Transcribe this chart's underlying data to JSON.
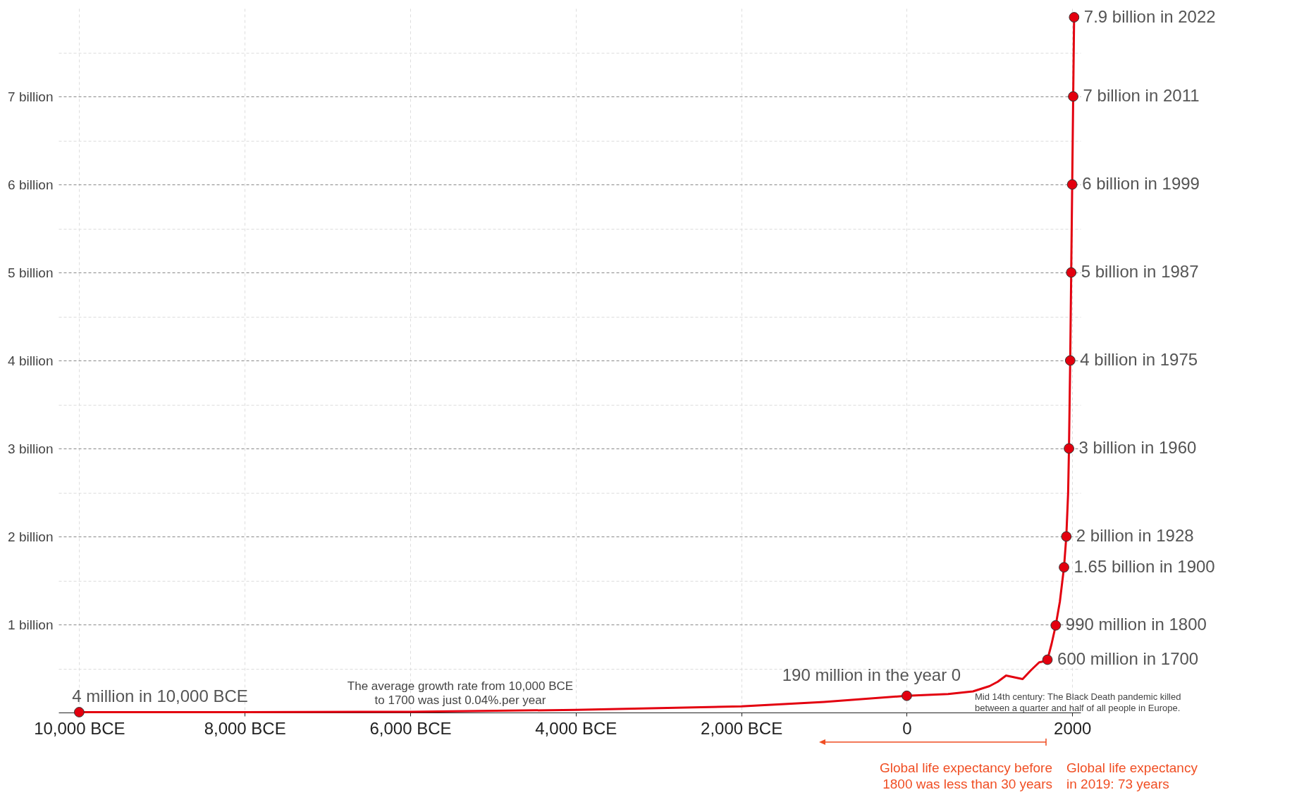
{
  "chart_data": {
    "type": "line",
    "xlim": [
      -10250,
      2100
    ],
    "ylim": [
      0,
      8
    ],
    "xticks": [
      {
        "value": -10000,
        "label": "10,000 BCE"
      },
      {
        "value": -8000,
        "label": "8,000 BCE"
      },
      {
        "value": -6000,
        "label": "6,000 BCE"
      },
      {
        "value": -4000,
        "label": "4,000 BCE"
      },
      {
        "value": -2000,
        "label": "2,000 BCE"
      },
      0,
      2000
    ],
    "yticks": [
      {
        "value": 0.5,
        "label": null
      },
      {
        "value": 1,
        "label": "1 billion"
      },
      {
        "value": 1.5,
        "label": null
      },
      {
        "value": 2,
        "label": "2 billion"
      },
      {
        "value": 2.5,
        "label": null
      },
      {
        "value": 3,
        "label": "3 billion"
      },
      {
        "value": 3.5,
        "label": null
      },
      {
        "value": 4,
        "label": "4 billion"
      },
      {
        "value": 4.5,
        "label": null
      },
      {
        "value": 5,
        "label": "5 billion"
      },
      {
        "value": 5.5,
        "label": null
      },
      {
        "value": 6,
        "label": "6 billion"
      },
      {
        "value": 6.5,
        "label": null
      },
      {
        "value": 7,
        "label": "7 billion"
      },
      {
        "value": 7.5,
        "label": null
      }
    ],
    "grid": true,
    "legend": false,
    "series": [
      {
        "type": "line",
        "color": "#e3000f",
        "marker": "none",
        "x": [
          -10000,
          -8000,
          -6000,
          -4000,
          -2000,
          -1000,
          0,
          500,
          800,
          1000,
          1100,
          1200,
          1300,
          1400,
          1500,
          1600,
          1650,
          1700,
          1750,
          1800,
          1850,
          1900,
          1928,
          1950,
          1960,
          1975,
          1987,
          1999,
          2011,
          2022
        ],
        "values": [
          0.004,
          0.005,
          0.008,
          0.03,
          0.07,
          0.12,
          0.19,
          0.21,
          0.24,
          0.3,
          0.35,
          0.42,
          0.4,
          0.38,
          0.48,
          0.57,
          0.58,
          0.6,
          0.78,
          0.99,
          1.26,
          1.65,
          2,
          2.5,
          3,
          4,
          5,
          6,
          7,
          7.9
        ]
      },
      {
        "type": "scatter",
        "color": "#e3000f",
        "marker": "circle",
        "x": [
          -10000,
          0,
          1700,
          1800,
          1900,
          1928,
          1960,
          1975,
          1987,
          1999,
          2011,
          2022
        ],
        "values": [
          0.004,
          0.19,
          0.6,
          0.99,
          1.65,
          2,
          3,
          4,
          5,
          6,
          7,
          7.9
        ],
        "value_labels": [
          "4 million in 10,000 BCE",
          "190 million in the year 0",
          "600 million in 1700",
          "990 million in 1800",
          "1.65 billion in 1900",
          "2 billion in 1928",
          "3 billion in 1960",
          "4 billion in 1975",
          "5 billion in 1987",
          "6 billion in 1999",
          "7 billion in 2011",
          "7.9 billion in 2022"
        ]
      }
    ],
    "annotations": [
      "The average growth rate from 10,000 BCE\nto 1700 was just  0.04%.per year",
      "Mid 14th century: The Black Death pandemic killed\nbetween a quarter and half of all people in Europe.",
      "Global life expectancy before\n1800 was less than 30 years",
      "Global life expectancy\nin 2019: 73 years"
    ]
  }
}
